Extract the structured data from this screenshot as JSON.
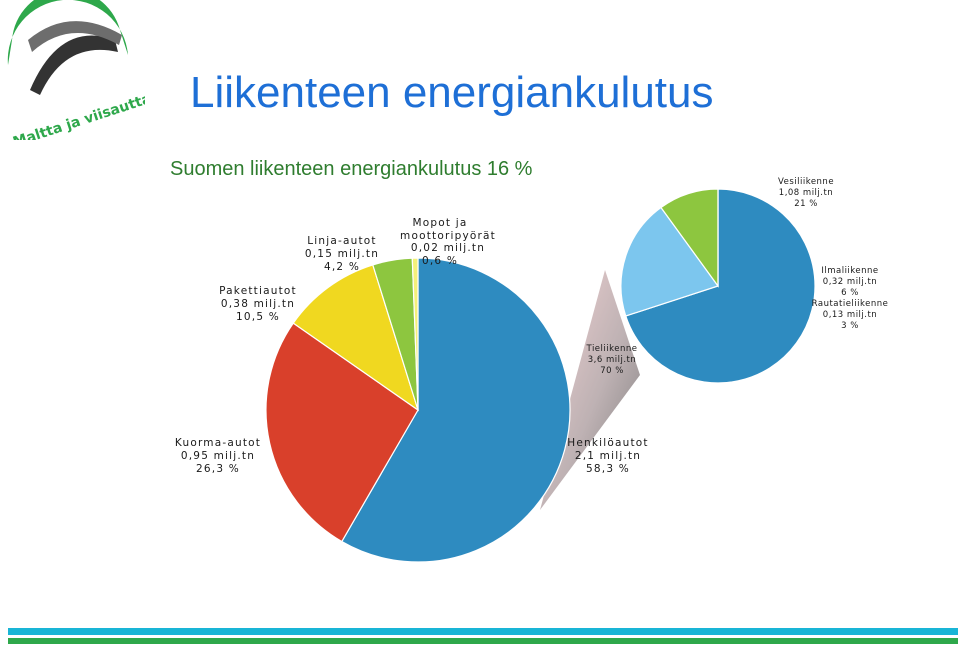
{
  "header": {
    "title": "Liikenteen energiankulutus",
    "subtitle": "Suomen liikenteen energiankulutus 16 %",
    "logo_text": "Maltta ja viisautta teille"
  },
  "colors": {
    "title": "#1e6fd6",
    "subtitle": "#2f7d2f",
    "blue": "#2e8bc0",
    "red": "#d9402b",
    "yellow": "#f0d820",
    "green": "#8dc63f",
    "light_yellow": "#f4f07a",
    "light_blue": "#7cc6ee",
    "stripe_cyan": "#19b5d6",
    "stripe_green": "#2ea84b"
  },
  "chart_data": [
    {
      "type": "pie",
      "slices": [
        {
          "label": "Henkilöautot",
          "value_text": "2,1 milj.tn",
          "percent_text": "58,3 %",
          "value": 58.3,
          "color": "#2e8bc0"
        },
        {
          "label": "Kuorma-autot",
          "value_text": "0,95 milj.tn",
          "percent_text": "26,3 %",
          "value": 26.3,
          "color": "#d9402b"
        },
        {
          "label": "Pakettiautot",
          "value_text": "0,38 milj.tn",
          "percent_text": "10,5 %",
          "value": 10.5,
          "color": "#f0d820"
        },
        {
          "label": "Linja-autot",
          "value_text": "0,15 milj.tn",
          "percent_text": "4,2 %",
          "value": 4.2,
          "color": "#8dc63f"
        },
        {
          "label": "Mopot ja moottoripyörät",
          "value_text": "0,02 milj.tn",
          "percent_text": "0,6 %",
          "value": 0.6,
          "color": "#f4f07a"
        }
      ]
    },
    {
      "type": "pie",
      "slices": [
        {
          "label": "Tieliikenne",
          "value_text": "3,6 milj.tn",
          "percent_text": "70 %",
          "value": 70,
          "color": "#d9402b"
        },
        {
          "label": "Vesiliikenne",
          "value_text": "1,08 milj.tn",
          "percent_text": "21 %",
          "value": 21,
          "color": "#2e8bc0"
        },
        {
          "label": "Ilmaliikenne",
          "value_text": "0,32 milj.tn",
          "percent_text": "6 %",
          "value": 6,
          "color": "#7cc6ee"
        },
        {
          "label": "Rautatieliikenne",
          "value_text": "0,13 milj.tn",
          "percent_text": "3 %",
          "value": 3,
          "color": "#8dc63f"
        }
      ]
    }
  ]
}
